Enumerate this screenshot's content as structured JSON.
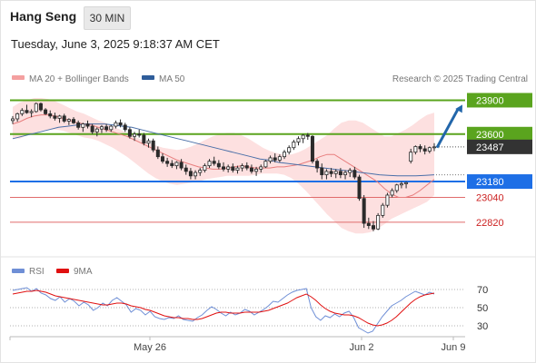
{
  "header": {
    "symbol": "Hang Seng",
    "timeframe": "30 MIN",
    "datetime": "Tuesday, June 3, 2025 9:18:37 AM CET",
    "copyright": "Research © 2025 Trading Central"
  },
  "legend": {
    "bb": "MA 20 + Bollinger Bands",
    "ma50": "MA 50",
    "rsi": "RSI",
    "rsi_ma": "9MA"
  },
  "colors": {
    "green": "#5aa41e",
    "blue": "#1e6fe6",
    "red_level": "#e06b6b",
    "candle": "#2a2a2a",
    "band_fill": "#fde0e0",
    "ma20": "#e87e7e",
    "ma50": "#4a6fa8",
    "rsi": "#6f8fd6",
    "rsi_ma": "#e01010",
    "arrow": "#2266aa",
    "last_price_bg": "#333333"
  },
  "chart_data": {
    "type": "candlestick",
    "price_axis": {
      "min": 22650,
      "max": 24000
    },
    "x_labels": [
      "May 26",
      "Jun 2",
      "Jun 9"
    ],
    "levels": [
      {
        "value": 23900,
        "label": "23900",
        "kind": "resistance"
      },
      {
        "value": 23600,
        "label": "23600",
        "kind": "pivot"
      },
      {
        "value": 23180,
        "label": "23180",
        "kind": "support"
      },
      {
        "value": 23040,
        "label": "23040",
        "kind": "support"
      },
      {
        "value": 22820,
        "label": "22820",
        "kind": "support"
      }
    ],
    "last_price": {
      "value": 23487,
      "label": "23487"
    },
    "target_arrow": {
      "from": 23480,
      "to": 23860
    },
    "ohlc": [
      [
        23720,
        23760,
        23690,
        23735
      ],
      [
        23735,
        23790,
        23710,
        23780
      ],
      [
        23780,
        23830,
        23760,
        23810
      ],
      [
        23810,
        23860,
        23780,
        23790
      ],
      [
        23790,
        23820,
        23750,
        23800
      ],
      [
        23800,
        23880,
        23790,
        23870
      ],
      [
        23870,
        23880,
        23800,
        23815
      ],
      [
        23815,
        23830,
        23770,
        23780
      ],
      [
        23780,
        23810,
        23740,
        23760
      ],
      [
        23760,
        23790,
        23720,
        23740
      ],
      [
        23740,
        23770,
        23700,
        23760
      ],
      [
        23760,
        23780,
        23700,
        23715
      ],
      [
        23715,
        23740,
        23680,
        23730
      ],
      [
        23730,
        23750,
        23690,
        23700
      ],
      [
        23700,
        23720,
        23640,
        23660
      ],
      [
        23660,
        23700,
        23620,
        23690
      ],
      [
        23690,
        23720,
        23650,
        23670
      ],
      [
        23670,
        23690,
        23600,
        23620
      ],
      [
        23620,
        23660,
        23580,
        23645
      ],
      [
        23645,
        23680,
        23610,
        23665
      ],
      [
        23665,
        23690,
        23620,
        23640
      ],
      [
        23640,
        23680,
        23620,
        23670
      ],
      [
        23670,
        23720,
        23650,
        23700
      ],
      [
        23700,
        23730,
        23660,
        23680
      ],
      [
        23680,
        23700,
        23620,
        23640
      ],
      [
        23640,
        23660,
        23560,
        23580
      ],
      [
        23580,
        23620,
        23540,
        23600
      ],
      [
        23600,
        23640,
        23570,
        23590
      ],
      [
        23590,
        23610,
        23500,
        23520
      ],
      [
        23520,
        23560,
        23480,
        23540
      ],
      [
        23540,
        23560,
        23440,
        23460
      ],
      [
        23460,
        23490,
        23380,
        23400
      ],
      [
        23400,
        23430,
        23340,
        23360
      ],
      [
        23360,
        23390,
        23310,
        23340
      ],
      [
        23340,
        23370,
        23300,
        23320
      ],
      [
        23320,
        23360,
        23290,
        23350
      ],
      [
        23350,
        23380,
        23280,
        23300
      ],
      [
        23300,
        23330,
        23240,
        23270
      ],
      [
        23270,
        23300,
        23200,
        23230
      ],
      [
        23230,
        23280,
        23200,
        23260
      ],
      [
        23260,
        23300,
        23230,
        23280
      ],
      [
        23280,
        23340,
        23260,
        23320
      ],
      [
        23320,
        23380,
        23300,
        23360
      ],
      [
        23360,
        23400,
        23320,
        23340
      ],
      [
        23340,
        23370,
        23290,
        23310
      ],
      [
        23310,
        23350,
        23270,
        23290
      ],
      [
        23290,
        23330,
        23260,
        23310
      ],
      [
        23310,
        23340,
        23260,
        23280
      ],
      [
        23280,
        23320,
        23250,
        23300
      ],
      [
        23300,
        23340,
        23270,
        23320
      ],
      [
        23320,
        23350,
        23280,
        23300
      ],
      [
        23300,
        23330,
        23250,
        23270
      ],
      [
        23270,
        23310,
        23230,
        23290
      ],
      [
        23290,
        23330,
        23260,
        23310
      ],
      [
        23310,
        23370,
        23300,
        23360
      ],
      [
        23360,
        23410,
        23340,
        23390
      ],
      [
        23390,
        23430,
        23350,
        23370
      ],
      [
        23370,
        23420,
        23350,
        23400
      ],
      [
        23400,
        23460,
        23380,
        23440
      ],
      [
        23440,
        23500,
        23420,
        23480
      ],
      [
        23480,
        23550,
        23460,
        23530
      ],
      [
        23530,
        23580,
        23500,
        23560
      ],
      [
        23560,
        23600,
        23520,
        23590
      ],
      [
        23590,
        23610,
        23550,
        23580
      ],
      [
        23580,
        23590,
        23340,
        23360
      ],
      [
        23360,
        23380,
        23260,
        23300
      ],
      [
        23300,
        23340,
        23200,
        23240
      ],
      [
        23240,
        23290,
        23200,
        23270
      ],
      [
        23270,
        23300,
        23220,
        23250
      ],
      [
        23250,
        23290,
        23210,
        23270
      ],
      [
        23270,
        23300,
        23210,
        23240
      ],
      [
        23240,
        23280,
        23200,
        23260
      ],
      [
        23260,
        23300,
        23220,
        23280
      ],
      [
        23280,
        23310,
        23200,
        23220
      ],
      [
        23220,
        23240,
        23010,
        23030
      ],
      [
        23030,
        23060,
        22770,
        22810
      ],
      [
        22810,
        22860,
        22760,
        22790
      ],
      [
        22790,
        22830,
        22740,
        22760
      ],
      [
        22760,
        22900,
        22750,
        22880
      ],
      [
        22880,
        22990,
        22860,
        22970
      ],
      [
        22970,
        23080,
        22950,
        23060
      ],
      [
        23060,
        23120,
        23040,
        23100
      ],
      [
        23100,
        23160,
        23080,
        23150
      ],
      [
        23150,
        23180,
        23120,
        23160
      ],
      [
        23160,
        23180,
        23120,
        23170
      ],
      [
        23360,
        23470,
        23340,
        23440
      ],
      [
        23440,
        23500,
        23420,
        23490
      ],
      [
        23490,
        23510,
        23440,
        23470
      ],
      [
        23470,
        23500,
        23420,
        23450
      ],
      [
        23450,
        23490,
        23430,
        23480
      ],
      [
        23480,
        23520,
        23450,
        23487
      ]
    ],
    "ma20": [
      23690,
      23710,
      23740,
      23760,
      23770,
      23770,
      23760,
      23740,
      23720,
      23700,
      23690,
      23680,
      23660,
      23640,
      23620,
      23600,
      23580,
      23550,
      23520,
      23490,
      23460,
      23430,
      23400,
      23370,
      23350,
      23330,
      23310,
      23300,
      23290,
      23290,
      23300,
      23310,
      23320,
      23310,
      23300,
      23300,
      23300,
      23310,
      23310,
      23320,
      23330,
      23350,
      23370,
      23400,
      23420,
      23420,
      23380,
      23340,
      23300,
      23260,
      23220,
      23180,
      23120,
      23070,
      23040,
      23040,
      23060,
      23100,
      23150,
      23200
    ],
    "ma50": [
      23560,
      23580,
      23600,
      23620,
      23640,
      23660,
      23670,
      23680,
      23690,
      23690,
      23690,
      23680,
      23670,
      23660,
      23640,
      23620,
      23600,
      23580,
      23560,
      23540,
      23520,
      23500,
      23480,
      23460,
      23440,
      23420,
      23400,
      23380,
      23370,
      23350,
      23340,
      23330,
      23320,
      23310,
      23300,
      23290,
      23280,
      23270,
      23260,
      23250,
      23240,
      23235,
      23230,
      23230,
      23230,
      23235,
      23240
    ],
    "bb_upper": [
      23840,
      23880,
      23900,
      23920,
      23920,
      23910,
      23890,
      23860,
      23830,
      23800,
      23780,
      23750,
      23720,
      23700,
      23670,
      23640,
      23610,
      23580,
      23550,
      23520,
      23500,
      23480,
      23470,
      23460,
      23470,
      23490,
      23520,
      23550,
      23580,
      23600,
      23610,
      23610,
      23590,
      23560,
      23520,
      23480,
      23450,
      23430,
      23420,
      23420,
      23440,
      23470,
      23510,
      23550,
      23590,
      23650,
      23700,
      23720,
      23720,
      23700,
      23660,
      23620,
      23580,
      23580,
      23610,
      23640,
      23680,
      23730,
      23770,
      23790
    ],
    "bb_lower": [
      23560,
      23560,
      23590,
      23610,
      23630,
      23640,
      23640,
      23630,
      23610,
      23590,
      23570,
      23560,
      23540,
      23510,
      23480,
      23440,
      23400,
      23350,
      23300,
      23250,
      23210,
      23180,
      23160,
      23150,
      23160,
      23170,
      23180,
      23200,
      23210,
      23220,
      23230,
      23230,
      23230,
      23230,
      23240,
      23250,
      23250,
      23250,
      23240,
      23210,
      23160,
      23100,
      23030,
      22960,
      22890,
      22830,
      22770,
      22740,
      22720,
      22720,
      22730,
      22760,
      22800,
      22850,
      22880,
      22910,
      22940,
      22970,
      23000,
      23060
    ],
    "rsi_axis": {
      "min": 20,
      "max": 80,
      "ticks": [
        "70",
        "50",
        "30"
      ]
    },
    "rsi": [
      69,
      70,
      71,
      72,
      68,
      71,
      66,
      64,
      60,
      58,
      62,
      56,
      60,
      57,
      52,
      56,
      53,
      47,
      50,
      55,
      52,
      58,
      61,
      57,
      53,
      45,
      49,
      47,
      42,
      46,
      40,
      38,
      37,
      39,
      38,
      41,
      37,
      36,
      35,
      39,
      42,
      47,
      51,
      48,
      44,
      41,
      45,
      42,
      44,
      48,
      46,
      42,
      45,
      48,
      52,
      57,
      56,
      60,
      64,
      67,
      69,
      70,
      71,
      50,
      40,
      36,
      41,
      39,
      43,
      40,
      44,
      46,
      39,
      28,
      25,
      22,
      24,
      32,
      40,
      46,
      52,
      55,
      58,
      62,
      65,
      68,
      66,
      64,
      67,
      65
    ],
    "rsi_ma": [
      65,
      66,
      67,
      68,
      68,
      69,
      68,
      67,
      65,
      63,
      62,
      61,
      60,
      59,
      58,
      57,
      56,
      55,
      54,
      53,
      53,
      54,
      55,
      55,
      54,
      52,
      51,
      50,
      48,
      47,
      45,
      43,
      41,
      40,
      39,
      39,
      38,
      38,
      37,
      37,
      38,
      40,
      42,
      44,
      45,
      45,
      44,
      44,
      44,
      45,
      45,
      45,
      45,
      46,
      47,
      49,
      51,
      53,
      55,
      58,
      61,
      63,
      65,
      62,
      58,
      53,
      49,
      46,
      44,
      43,
      42,
      42,
      41,
      39,
      36,
      33,
      31,
      30,
      31,
      33,
      36,
      40,
      45,
      50,
      55,
      59,
      62,
      64,
      65,
      66
    ]
  }
}
